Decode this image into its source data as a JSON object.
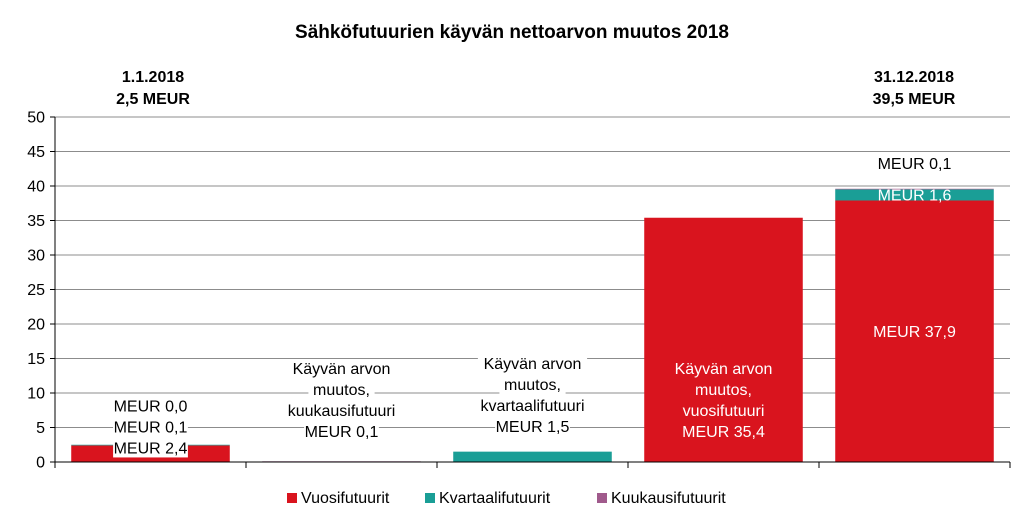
{
  "chart_data": {
    "type": "bar",
    "title": "Sähköfutuurien käyvän nettoarvon muutos 2018",
    "ylim": [
      0,
      50
    ],
    "yticks": [
      0,
      5,
      10,
      15,
      20,
      25,
      30,
      35,
      40,
      45,
      50
    ],
    "grid": true,
    "legend_position": "bottom",
    "headers": [
      {
        "date": "1.1.2018",
        "value": "2,5 MEUR"
      },
      {
        "date": "31.12.2018",
        "value": "39,5 MEUR"
      }
    ],
    "series": [
      {
        "name": "Vuosifutuurit",
        "color": "#d9141e"
      },
      {
        "name": "Kvartaalifutuurit",
        "color": "#1a9e96"
      },
      {
        "name": "Kuukausifutuurit",
        "color": "#a05a8c"
      }
    ],
    "bars": [
      {
        "segments": [
          {
            "series": "Vuosifutuurit",
            "start": 0,
            "end": 2.4
          },
          {
            "series": "Kvartaalifutuurit",
            "start": 2.4,
            "end": 2.5
          }
        ],
        "labels": [
          "MEUR 0,0",
          "MEUR 0,1",
          "MEUR 2,4"
        ]
      },
      {
        "segments": [
          {
            "series": "Kuukausifutuurit",
            "start": 0,
            "end": 0.1
          }
        ],
        "labels": [
          "Käyvän arvon",
          "muutos,",
          "kuukausifutuuri",
          "MEUR 0,1"
        ]
      },
      {
        "segments": [
          {
            "series": "Kvartaalifutuurit",
            "start": 0,
            "end": 1.5
          }
        ],
        "labels": [
          "Käyvän arvon",
          "muutos,",
          "kvartaalifutuuri",
          "MEUR 1,5"
        ]
      },
      {
        "segments": [
          {
            "series": "Vuosifutuurit",
            "start": 0,
            "end": 35.4
          }
        ],
        "labels": [
          "Käyvän arvon",
          "muutos,",
          "vuosifutuuri",
          "MEUR 35,4"
        ]
      },
      {
        "segments": [
          {
            "series": "Vuosifutuurit",
            "start": 0,
            "end": 37.9
          },
          {
            "series": "Kvartaalifutuurit",
            "start": 37.9,
            "end": 39.5
          },
          {
            "series": "Kuukausifutuurit",
            "start": 39.5,
            "end": 39.6
          }
        ],
        "labels": [
          "MEUR 0,1",
          "MEUR 1,6",
          "MEUR 37,9"
        ]
      }
    ]
  }
}
